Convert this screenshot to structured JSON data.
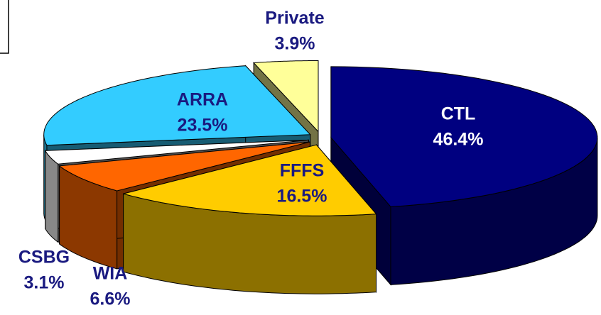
{
  "chart_data": {
    "type": "pie",
    "categories": [
      "CTL",
      "FFFS",
      "WIA",
      "CSBG",
      "ARRA",
      "Private"
    ],
    "values": [
      46.4,
      16.5,
      6.6,
      3.1,
      23.5,
      3.9
    ],
    "value_labels": [
      "46.4%",
      "16.5%",
      "6.6%",
      "3.1%",
      "23.5%",
      "3.9%"
    ],
    "colors": [
      "#000080",
      "#ffcc00",
      "#ff6600",
      "#ffffff",
      "#33ccff",
      "#ffff99"
    ],
    "label_colors": [
      "#ffffff",
      "#1a1a80",
      "#1a1a80",
      "#1a1a80",
      "#1a1a80",
      "#1a1a80"
    ]
  }
}
